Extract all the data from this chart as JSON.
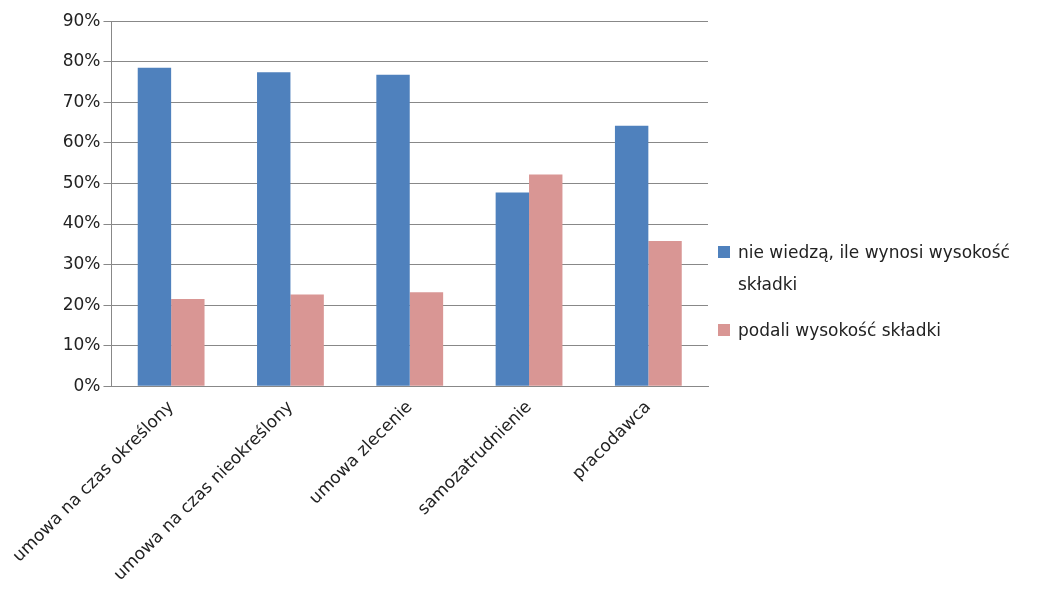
{
  "chart_data": {
    "type": "bar",
    "categories": [
      "umowa na czas określony",
      "umowa na czas nieokreślony",
      "umowa zlecenie",
      "samozatrudnienie",
      "pracodawca"
    ],
    "series": [
      {
        "name": "nie wiedzą, ile wynosi wysokość składki",
        "color": "#4f81bd",
        "values": [
          78.5,
          77.4,
          76.8,
          47.8,
          64.2
        ]
      },
      {
        "name": "podali wysokość składki",
        "color": "#d99694",
        "values": [
          21.5,
          22.6,
          23.2,
          52.2,
          35.8
        ]
      }
    ],
    "ylim": [
      0,
      90
    ],
    "yticks": [
      {
        "value": 0,
        "label": "0%"
      },
      {
        "value": 10,
        "label": "10%"
      },
      {
        "value": 20,
        "label": "20%"
      },
      {
        "value": 30,
        "label": "30%"
      },
      {
        "value": 40,
        "label": "40%"
      },
      {
        "value": 50,
        "label": "50%"
      },
      {
        "value": 60,
        "label": "60%"
      },
      {
        "value": 70,
        "label": "70%"
      },
      {
        "value": 80,
        "label": "80%"
      },
      {
        "value": 90,
        "label": "90%"
      }
    ],
    "grid": "y",
    "legend": "right"
  }
}
